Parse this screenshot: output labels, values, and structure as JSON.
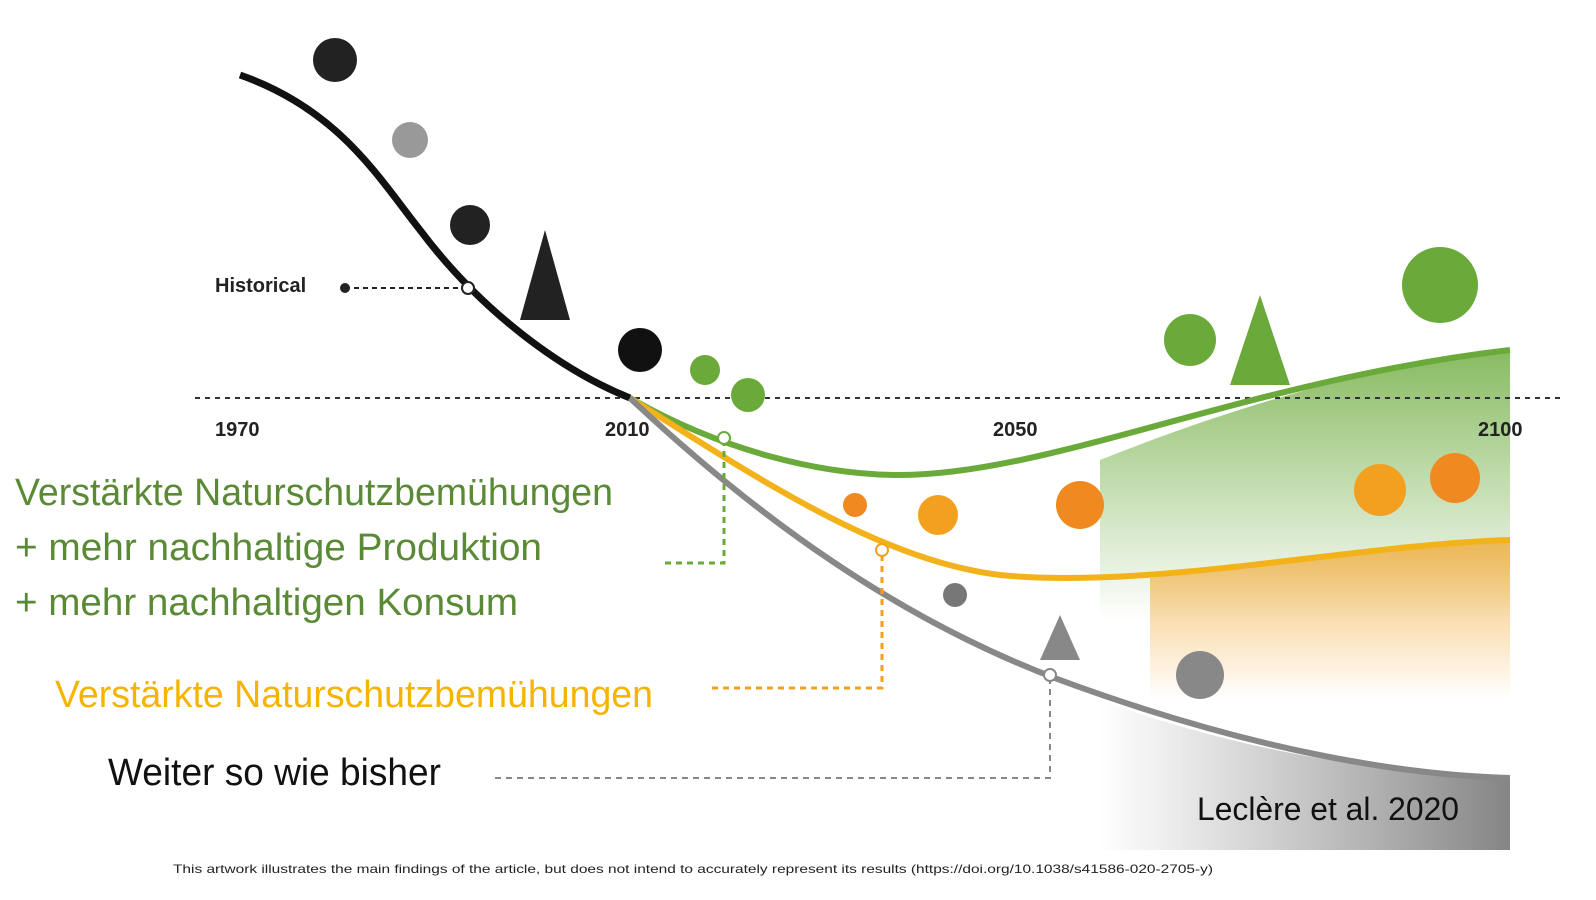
{
  "labels": {
    "historical": "Historical",
    "years": [
      "1970",
      "2010",
      "2050",
      "2100"
    ]
  },
  "scenarios": [
    {
      "lines": [
        "Verstärkte Naturschutzbemühungen",
        "+ mehr nachhaltige Produktion",
        "+ mehr nachhaltigen Konsum"
      ]
    },
    {
      "lines": [
        "Verstärkte Naturschutzbemühungen"
      ]
    },
    {
      "lines": [
        "Weiter so wie bisher"
      ]
    }
  ],
  "source": "Leclère et al. 2020",
  "footnote": "This artwork illustrates the main findings of the article, but does not intend to accurately represent its results (https://doi.org/10.1038/s41586-020-2705-y)"
}
